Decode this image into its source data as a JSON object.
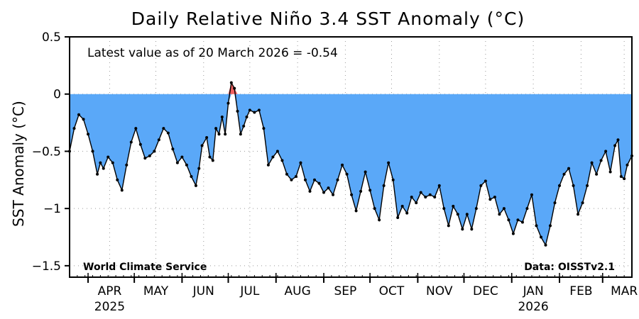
{
  "chart_data": {
    "type": "area",
    "title": "Daily Relative Niño 3.4 SST Anomaly (°C)",
    "ylabel": "SST Anomaly (°C)",
    "xlabel": "",
    "ylim": [
      -1.6,
      0.5
    ],
    "yticks": [
      0.5,
      0,
      -0.5,
      -1,
      -1.5
    ],
    "ytick_labels": [
      "0.5",
      "0",
      "-0.5",
      "-1",
      "-1.5"
    ],
    "x_start": "2025-03-20",
    "x_end": "2026-03-20",
    "months": [
      {
        "label": "APR",
        "date": "2025-04-15",
        "year": "2025"
      },
      {
        "label": "MAY",
        "date": "2025-05-15",
        "year": ""
      },
      {
        "label": "JUN",
        "date": "2025-06-15",
        "year": ""
      },
      {
        "label": "JUL",
        "date": "2025-07-15",
        "year": ""
      },
      {
        "label": "AUG",
        "date": "2025-08-15",
        "year": ""
      },
      {
        "label": "SEP",
        "date": "2025-09-15",
        "year": ""
      },
      {
        "label": "OCT",
        "date": "2025-10-15",
        "year": ""
      },
      {
        "label": "NOV",
        "date": "2025-11-15",
        "year": ""
      },
      {
        "label": "DEC",
        "date": "2025-12-15",
        "year": ""
      },
      {
        "label": "JAN",
        "date": "2026-01-15",
        "year": "2026"
      },
      {
        "label": "FEB",
        "date": "2026-02-15",
        "year": ""
      },
      {
        "label": "MAR",
        "date": "2026-03-15",
        "year": ""
      }
    ],
    "grid": true,
    "colors": {
      "negative": "#5aa8f8",
      "positive": "#f06060",
      "line": "#000000"
    },
    "annotation_latest": "Latest value as of 20 March 2026 = -0.54",
    "annotation_source_left": "World Climate Service",
    "annotation_source_right": "Data: OISSTv2.1",
    "series": [
      {
        "points": [
          [
            "2025-03-20",
            -0.5
          ],
          [
            "2025-03-23",
            -0.3
          ],
          [
            "2025-03-26",
            -0.18
          ],
          [
            "2025-03-29",
            -0.22
          ],
          [
            "2025-04-01",
            -0.35
          ],
          [
            "2025-04-04",
            -0.5
          ],
          [
            "2025-04-07",
            -0.7
          ],
          [
            "2025-04-09",
            -0.6
          ],
          [
            "2025-04-11",
            -0.65
          ],
          [
            "2025-04-14",
            -0.55
          ],
          [
            "2025-04-17",
            -0.6
          ],
          [
            "2025-04-20",
            -0.75
          ],
          [
            "2025-04-23",
            -0.84
          ],
          [
            "2025-04-26",
            -0.62
          ],
          [
            "2025-04-29",
            -0.42
          ],
          [
            "2025-05-02",
            -0.3
          ],
          [
            "2025-05-05",
            -0.44
          ],
          [
            "2025-05-08",
            -0.56
          ],
          [
            "2025-05-11",
            -0.54
          ],
          [
            "2025-05-14",
            -0.5
          ],
          [
            "2025-05-17",
            -0.4
          ],
          [
            "2025-05-20",
            -0.3
          ],
          [
            "2025-05-23",
            -0.34
          ],
          [
            "2025-05-26",
            -0.48
          ],
          [
            "2025-05-29",
            -0.6
          ],
          [
            "2025-06-01",
            -0.55
          ],
          [
            "2025-06-04",
            -0.62
          ],
          [
            "2025-06-07",
            -0.72
          ],
          [
            "2025-06-10",
            -0.8
          ],
          [
            "2025-06-12",
            -0.65
          ],
          [
            "2025-06-14",
            -0.45
          ],
          [
            "2025-06-17",
            -0.38
          ],
          [
            "2025-06-19",
            -0.55
          ],
          [
            "2025-06-21",
            -0.58
          ],
          [
            "2025-06-23",
            -0.3
          ],
          [
            "2025-06-25",
            -0.35
          ],
          [
            "2025-06-27",
            -0.2
          ],
          [
            "2025-06-29",
            -0.35
          ],
          [
            "2025-07-01",
            -0.08
          ],
          [
            "2025-07-03",
            0.1
          ],
          [
            "2025-07-05",
            0.05
          ],
          [
            "2025-07-07",
            -0.15
          ],
          [
            "2025-07-09",
            -0.35
          ],
          [
            "2025-07-11",
            -0.28
          ],
          [
            "2025-07-13",
            -0.2
          ],
          [
            "2025-07-15",
            -0.14
          ],
          [
            "2025-07-18",
            -0.16
          ],
          [
            "2025-07-21",
            -0.14
          ],
          [
            "2025-07-24",
            -0.3
          ],
          [
            "2025-07-27",
            -0.62
          ],
          [
            "2025-07-30",
            -0.55
          ],
          [
            "2025-08-02",
            -0.5
          ],
          [
            "2025-08-05",
            -0.58
          ],
          [
            "2025-08-08",
            -0.7
          ],
          [
            "2025-08-11",
            -0.75
          ],
          [
            "2025-08-14",
            -0.72
          ],
          [
            "2025-08-17",
            -0.6
          ],
          [
            "2025-08-20",
            -0.75
          ],
          [
            "2025-08-23",
            -0.85
          ],
          [
            "2025-08-26",
            -0.75
          ],
          [
            "2025-08-29",
            -0.78
          ],
          [
            "2025-09-01",
            -0.86
          ],
          [
            "2025-09-04",
            -0.82
          ],
          [
            "2025-09-07",
            -0.88
          ],
          [
            "2025-09-10",
            -0.75
          ],
          [
            "2025-09-13",
            -0.62
          ],
          [
            "2025-09-16",
            -0.7
          ],
          [
            "2025-09-19",
            -0.88
          ],
          [
            "2025-09-22",
            -1.02
          ],
          [
            "2025-09-25",
            -0.85
          ],
          [
            "2025-09-28",
            -0.68
          ],
          [
            "2025-10-01",
            -0.84
          ],
          [
            "2025-10-04",
            -1.0
          ],
          [
            "2025-10-07",
            -1.1
          ],
          [
            "2025-10-10",
            -0.8
          ],
          [
            "2025-10-13",
            -0.6
          ],
          [
            "2025-10-16",
            -0.75
          ],
          [
            "2025-10-19",
            -1.08
          ],
          [
            "2025-10-22",
            -0.98
          ],
          [
            "2025-10-25",
            -1.04
          ],
          [
            "2025-10-28",
            -0.9
          ],
          [
            "2025-10-31",
            -0.95
          ],
          [
            "2025-11-03",
            -0.86
          ],
          [
            "2025-11-06",
            -0.9
          ],
          [
            "2025-11-09",
            -0.88
          ],
          [
            "2025-11-12",
            -0.9
          ],
          [
            "2025-11-15",
            -0.8
          ],
          [
            "2025-11-18",
            -1.0
          ],
          [
            "2025-11-21",
            -1.15
          ],
          [
            "2025-11-24",
            -0.98
          ],
          [
            "2025-11-27",
            -1.05
          ],
          [
            "2025-11-30",
            -1.18
          ],
          [
            "2025-12-03",
            -1.05
          ],
          [
            "2025-12-06",
            -1.18
          ],
          [
            "2025-12-09",
            -1.0
          ],
          [
            "2025-12-12",
            -0.8
          ],
          [
            "2025-12-15",
            -0.76
          ],
          [
            "2025-12-18",
            -0.92
          ],
          [
            "2025-12-21",
            -0.9
          ],
          [
            "2025-12-24",
            -1.05
          ],
          [
            "2025-12-27",
            -1.0
          ],
          [
            "2025-12-30",
            -1.1
          ],
          [
            "2026-01-02",
            -1.22
          ],
          [
            "2026-01-05",
            -1.1
          ],
          [
            "2026-01-08",
            -1.12
          ],
          [
            "2026-01-11",
            -1.0
          ],
          [
            "2026-01-14",
            -0.88
          ],
          [
            "2026-01-17",
            -1.15
          ],
          [
            "2026-01-20",
            -1.25
          ],
          [
            "2026-01-23",
            -1.32
          ],
          [
            "2026-01-26",
            -1.15
          ],
          [
            "2026-01-29",
            -0.95
          ],
          [
            "2026-02-01",
            -0.8
          ],
          [
            "2026-02-04",
            -0.7
          ],
          [
            "2026-02-07",
            -0.65
          ],
          [
            "2026-02-10",
            -0.8
          ],
          [
            "2026-02-13",
            -1.05
          ],
          [
            "2026-02-16",
            -0.95
          ],
          [
            "2026-02-19",
            -0.8
          ],
          [
            "2026-02-22",
            -0.6
          ],
          [
            "2026-02-25",
            -0.7
          ],
          [
            "2026-02-28",
            -0.58
          ],
          [
            "2026-03-03",
            -0.5
          ],
          [
            "2026-03-06",
            -0.68
          ],
          [
            "2026-03-09",
            -0.45
          ],
          [
            "2026-03-11",
            -0.4
          ],
          [
            "2026-03-13",
            -0.72
          ],
          [
            "2026-03-15",
            -0.74
          ],
          [
            "2026-03-17",
            -0.62
          ],
          [
            "2026-03-20",
            -0.54
          ]
        ]
      }
    ]
  }
}
